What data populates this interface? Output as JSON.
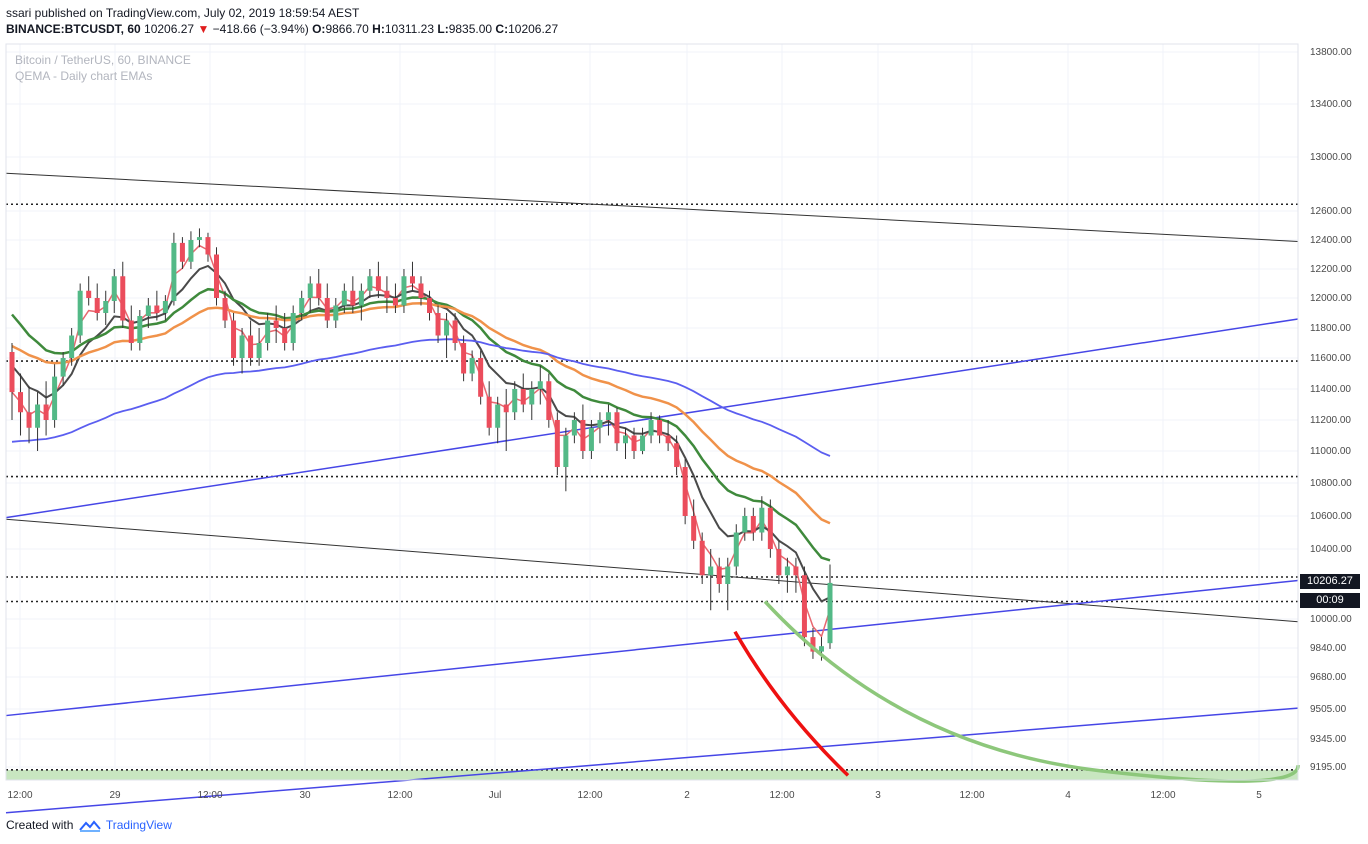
{
  "header": {
    "publisher": "ssari published on TradingView.com, July 02, 2019 18:59:54 AEST",
    "symbol": "BINANCE:BTCUSDT, 60",
    "last": "10206.27",
    "change_arrow": "▼",
    "change": "−418.66 (−3.94%)",
    "o_label": "O:",
    "o_value": "9866.70",
    "h_label": "H:",
    "h_value": "10311.23",
    "l_label": "L:",
    "l_value": "9835.00",
    "c_label": "C:",
    "c_value": "10206.27"
  },
  "legend": {
    "line1": "Bitcoin / TetherUS, 60, BINANCE",
    "line2": "QEMA - Daily chart EMAs"
  },
  "footer": {
    "created_with": "Created with",
    "brand": "TradingView",
    "logo_icon": "tradingview-logo-icon"
  },
  "price_tags": {
    "last_price": "10206.27",
    "countdown": "00:09"
  },
  "chart_data": {
    "type": "candlestick",
    "title": "Bitcoin / TetherUS, 60, BINANCE",
    "subtitle": "QEMA - Daily chart EMAs",
    "y_axis": {
      "position": "right",
      "ticks": [
        "13800.00",
        "13400.00",
        "13000.00",
        "12600.00",
        "12400.00",
        "12200.00",
        "12000.00",
        "11800.00",
        "11600.00",
        "11400.00",
        "11200.00",
        "11000.00",
        "10800.00",
        "10600.00",
        "10400.00",
        "10000.00",
        "9840.00",
        "9680.00",
        "9505.00",
        "9345.00",
        "9195.00"
      ]
    },
    "x_axis": {
      "ticks": [
        "12:00",
        "29",
        "12:00",
        "30",
        "12:00",
        "Jul",
        "12:00",
        "2",
        "12:00",
        "3",
        "12:00",
        "4",
        "12:00",
        "5"
      ]
    },
    "colors": {
      "up": "#53b987",
      "down": "#eb4d5c",
      "ema_fast": "#e8676f",
      "ema_dark": "#4a4a4a",
      "ema_green": "#3f8a3c",
      "ema_orange": "#f0924a",
      "ema_blue": "#5b5ef0",
      "trend_blue": "#4646e6",
      "trend_black": "#333333",
      "curve_red": "#ee1111",
      "curve_green": "#8dc77b",
      "support_band": "#c8e6c0"
    },
    "horizontal_levels": [
      12650,
      11580,
      10840,
      10240,
      10100,
      9180
    ],
    "candles": [
      [
        11640,
        11700,
        11200,
        11380
      ],
      [
        11380,
        11500,
        11100,
        11250
      ],
      [
        11250,
        11420,
        11050,
        11150
      ],
      [
        11150,
        11380,
        11000,
        11300
      ],
      [
        11300,
        11450,
        11100,
        11200
      ],
      [
        11200,
        11560,
        11150,
        11480
      ],
      [
        11480,
        11640,
        11420,
        11600
      ],
      [
        11600,
        11800,
        11550,
        11750
      ],
      [
        11750,
        12100,
        11700,
        12050
      ],
      [
        12050,
        12150,
        11950,
        12000
      ],
      [
        12000,
        12100,
        11850,
        11900
      ],
      [
        11900,
        12050,
        11820,
        11980
      ],
      [
        11980,
        12200,
        11900,
        12150
      ],
      [
        12150,
        12250,
        11800,
        11850
      ],
      [
        11850,
        11950,
        11650,
        11700
      ],
      [
        11700,
        11920,
        11650,
        11880
      ],
      [
        11880,
        12000,
        11800,
        11950
      ],
      [
        11950,
        12050,
        11850,
        11900
      ],
      [
        11900,
        12020,
        11850,
        11980
      ],
      [
        11980,
        12450,
        11950,
        12380
      ],
      [
        12380,
        12420,
        12200,
        12250
      ],
      [
        12250,
        12460,
        12200,
        12400
      ],
      [
        12400,
        12480,
        12350,
        12420
      ],
      [
        12420,
        12450,
        12250,
        12300
      ],
      [
        12300,
        12350,
        11950,
        12000
      ],
      [
        12000,
        12050,
        11800,
        11850
      ],
      [
        11850,
        11900,
        11550,
        11600
      ],
      [
        11600,
        11800,
        11500,
        11750
      ],
      [
        11750,
        11850,
        11550,
        11600
      ],
      [
        11600,
        11800,
        11550,
        11700
      ],
      [
        11700,
        11900,
        11650,
        11850
      ],
      [
        11850,
        11950,
        11700,
        11800
      ],
      [
        11800,
        11900,
        11650,
        11700
      ],
      [
        11700,
        11950,
        11650,
        11900
      ],
      [
        11900,
        12050,
        11850,
        12000
      ],
      [
        12000,
        12150,
        11900,
        12100
      ],
      [
        12100,
        12200,
        11950,
        12000
      ],
      [
        12000,
        12100,
        11800,
        11850
      ],
      [
        11850,
        12000,
        11800,
        11950
      ],
      [
        11950,
        12100,
        11900,
        12050
      ],
      [
        12050,
        12150,
        11900,
        11950
      ],
      [
        11950,
        12100,
        11850,
        12050
      ],
      [
        12050,
        12200,
        12000,
        12150
      ],
      [
        12150,
        12250,
        12000,
        12050
      ],
      [
        12050,
        12150,
        11900,
        12000
      ],
      [
        12000,
        12100,
        11900,
        11950
      ],
      [
        11950,
        12200,
        11900,
        12150
      ],
      [
        12150,
        12250,
        12050,
        12100
      ],
      [
        12100,
        12150,
        11950,
        12000
      ],
      [
        12000,
        12050,
        11850,
        11900
      ],
      [
        11900,
        11950,
        11700,
        11750
      ],
      [
        11750,
        11900,
        11600,
        11850
      ],
      [
        11850,
        11900,
        11650,
        11700
      ],
      [
        11700,
        11750,
        11450,
        11500
      ],
      [
        11500,
        11650,
        11450,
        11600
      ],
      [
        11600,
        11650,
        11300,
        11350
      ],
      [
        11350,
        11450,
        11100,
        11150
      ],
      [
        11150,
        11350,
        11050,
        11300
      ],
      [
        11300,
        11400,
        11000,
        11250
      ],
      [
        11250,
        11450,
        11200,
        11400
      ],
      [
        11400,
        11500,
        11250,
        11300
      ],
      [
        11300,
        11450,
        11200,
        11400
      ],
      [
        11400,
        11550,
        11300,
        11450
      ],
      [
        11450,
        11500,
        11150,
        11200
      ],
      [
        11200,
        11250,
        10850,
        10900
      ],
      [
        10900,
        11150,
        10750,
        11100
      ],
      [
        11100,
        11250,
        11050,
        11200
      ],
      [
        11200,
        11300,
        10950,
        11000
      ],
      [
        11000,
        11200,
        10950,
        11150
      ],
      [
        11150,
        11250,
        11050,
        11200
      ],
      [
        11200,
        11300,
        11100,
        11250
      ],
      [
        11250,
        11280,
        11000,
        11050
      ],
      [
        11050,
        11150,
        10950,
        11100
      ],
      [
        11100,
        11150,
        10950,
        11000
      ],
      [
        11000,
        11150,
        10980,
        11100
      ],
      [
        11100,
        11250,
        11050,
        11200
      ],
      [
        11200,
        11230,
        11050,
        11100
      ],
      [
        11100,
        11200,
        11000,
        11050
      ],
      [
        11050,
        11100,
        10850,
        10900
      ],
      [
        10900,
        10950,
        10550,
        10600
      ],
      [
        10600,
        10700,
        10400,
        10450
      ],
      [
        10450,
        10500,
        10200,
        10250
      ],
      [
        10250,
        10400,
        10050,
        10300
      ],
      [
        10300,
        10350,
        10150,
        10200
      ],
      [
        10200,
        10350,
        10050,
        10300
      ],
      [
        10300,
        10550,
        10250,
        10500
      ],
      [
        10500,
        10650,
        10450,
        10600
      ],
      [
        10600,
        10650,
        10450,
        10500
      ],
      [
        10500,
        10720,
        10450,
        10650
      ],
      [
        10650,
        10700,
        10350,
        10400
      ],
      [
        10400,
        10450,
        10200,
        10250
      ],
      [
        10250,
        10350,
        10150,
        10300
      ],
      [
        10300,
        10350,
        10150,
        10250
      ],
      [
        10250,
        10300,
        9850,
        9900
      ],
      [
        9900,
        9950,
        9780,
        9820
      ],
      [
        9820,
        9900,
        9770,
        9850
      ],
      [
        9866.7,
        10311.23,
        9835.0,
        10206.27
      ]
    ]
  }
}
